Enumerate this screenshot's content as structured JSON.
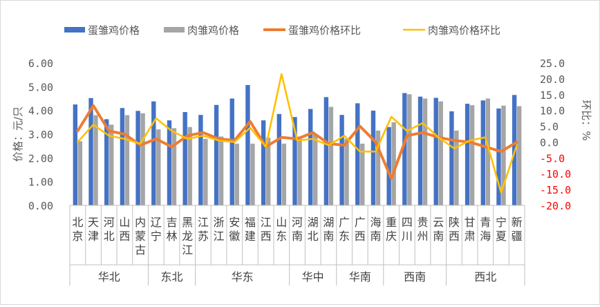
{
  "chart_data": {
    "type": "bar",
    "categories": [
      "北京",
      "天津",
      "河北",
      "山西",
      "内蒙古",
      "辽宁",
      "吉林",
      "黑龙江",
      "江苏",
      "浙江",
      "安徽",
      "福建",
      "江西",
      "山东",
      "河南",
      "湖北",
      "湖南",
      "广东",
      "广西",
      "海南",
      "重庆",
      "四川",
      "贵州",
      "云南",
      "陕西",
      "甘肃",
      "青海",
      "宁夏",
      "新疆"
    ],
    "regions": [
      {
        "name": "华北",
        "start": 0,
        "count": 5
      },
      {
        "name": "东北",
        "start": 5,
        "count": 3
      },
      {
        "name": "华东",
        "start": 8,
        "count": 6
      },
      {
        "name": "华中",
        "start": 14,
        "count": 3
      },
      {
        "name": "华南",
        "start": 17,
        "count": 3
      },
      {
        "name": "西南",
        "start": 20,
        "count": 4
      },
      {
        "name": "西北",
        "start": 24,
        "count": 5
      }
    ],
    "series": [
      {
        "name": "蛋雏鸡价格",
        "type": "bar",
        "axis": "left",
        "color": "#4472C4",
        "values": [
          4.25,
          4.52,
          3.63,
          4.1,
          3.98,
          4.38,
          3.58,
          3.93,
          3.81,
          4.23,
          4.5,
          5.07,
          3.58,
          3.85,
          3.72,
          4.06,
          4.56,
          3.81,
          4.3,
          3.99,
          3.3,
          4.73,
          4.58,
          4.53,
          3.96,
          4.28,
          4.42,
          4.08,
          4.65
        ]
      },
      {
        "name": "肉雏鸡价格",
        "type": "bar",
        "axis": "left",
        "color": "#A5A5A5",
        "values": [
          2.7,
          3.8,
          3.4,
          3.8,
          3.88,
          3.2,
          3.25,
          3.3,
          2.8,
          2.9,
          2.6,
          2.6,
          2.85,
          2.6,
          2.9,
          3.0,
          4.15,
          2.8,
          2.6,
          3.15,
          3.5,
          4.68,
          4.5,
          4.38,
          3.15,
          4.22,
          4.5,
          4.2,
          4.18
        ]
      },
      {
        "name": "蛋雏鸡价格环比",
        "type": "line",
        "axis": "right",
        "color": "#ED7D31",
        "values": [
          3.5,
          11.5,
          3.5,
          2.5,
          -1.0,
          1.0,
          -1.5,
          2.0,
          3.0,
          1.0,
          0.5,
          6.5,
          -1.5,
          1.5,
          1.0,
          3.0,
          -0.5,
          -1.0,
          5.0,
          0.0,
          -11.5,
          2.0,
          3.0,
          1.5,
          0.5,
          0.0,
          -1.5,
          -3.0,
          0.0
        ]
      },
      {
        "name": "肉雏鸡价格环比",
        "type": "line",
        "axis": "right",
        "color": "#FFC000",
        "values": [
          0.0,
          5.5,
          2.0,
          1.0,
          -0.5,
          7.5,
          3.5,
          1.0,
          2.0,
          0.5,
          0.0,
          4.5,
          -1.5,
          21.5,
          0.5,
          1.0,
          -1.0,
          2.0,
          -3.0,
          -3.0,
          8.0,
          3.5,
          6.0,
          1.5,
          -2.0,
          0.5,
          1.5,
          -16.0,
          -1.0
        ]
      }
    ],
    "ylabel": "价格：元/只",
    "y2label": "环比：%",
    "ylim": [
      0,
      6
    ],
    "y2lim": [
      -20,
      25
    ],
    "yticks": [
      "0.00",
      "1.00",
      "2.00",
      "3.00",
      "4.00",
      "5.00",
      "6.00"
    ],
    "y2ticks": [
      "-20.0",
      "-15.0",
      "-10.0",
      "-5.0",
      "0.0",
      "5.0",
      "10.0",
      "15.0",
      "20.0",
      "25.0"
    ],
    "legend_position": "top",
    "grid": false
  }
}
